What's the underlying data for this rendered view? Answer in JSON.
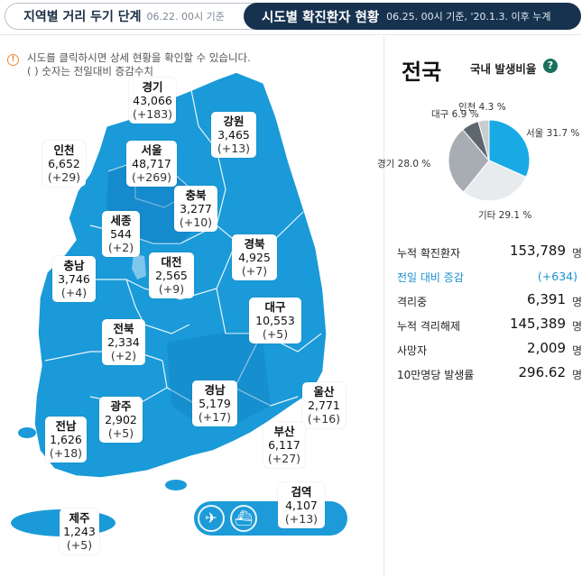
{
  "tabs": [
    {
      "title": "지역별 거리 두기 단계",
      "sub": "06.22. 00시 기준"
    },
    {
      "title": "시도별 확진환자 현황",
      "sub": "06.25. 00시 기준, '20.1.3. 이후 누계"
    }
  ],
  "notice": {
    "line1": "시도를 클릭하시면 상세 현황을 확인할 수 있습니다.",
    "line2": "( ) 숫자는 전일대비 증감수치"
  },
  "regions": {
    "gyeonggi": {
      "name": "경기",
      "value": "43,066",
      "delta": "(+183)"
    },
    "gangwon": {
      "name": "강원",
      "value": "3,465",
      "delta": "(+13)"
    },
    "incheon": {
      "name": "인천",
      "value": "6,652",
      "delta": "(+29)"
    },
    "seoul": {
      "name": "서울",
      "value": "48,717",
      "delta": "(+269)"
    },
    "chungbuk": {
      "name": "충북",
      "value": "3,277",
      "delta": "(+10)"
    },
    "sejong": {
      "name": "세종",
      "value": "544",
      "delta": "(+2)"
    },
    "chungnam": {
      "name": "충남",
      "value": "3,746",
      "delta": "(+4)"
    },
    "daejeon": {
      "name": "대전",
      "value": "2,565",
      "delta": "(+9)"
    },
    "gyeongbuk": {
      "name": "경북",
      "value": "4,925",
      "delta": "(+7)"
    },
    "daegu": {
      "name": "대구",
      "value": "10,553",
      "delta": "(+5)"
    },
    "jeonbuk": {
      "name": "전북",
      "value": "2,334",
      "delta": "(+2)"
    },
    "gwangju": {
      "name": "광주",
      "value": "2,902",
      "delta": "(+5)"
    },
    "gyeongnam": {
      "name": "경남",
      "value": "5,179",
      "delta": "(+17)"
    },
    "ulsan": {
      "name": "울산",
      "value": "2,771",
      "delta": "(+16)"
    },
    "jeonnam": {
      "name": "전남",
      "value": "1,626",
      "delta": "(+18)"
    },
    "busan": {
      "name": "부산",
      "value": "6,117",
      "delta": "(+27)"
    },
    "jeju": {
      "name": "제주",
      "value": "1,243",
      "delta": "(+5)"
    },
    "quarantine": {
      "name": "검역",
      "value": "4,107",
      "delta": "(+13)"
    }
  },
  "transport_icons": [
    "airplane-icon",
    "ship-icon"
  ],
  "national": {
    "title": "전국",
    "ratio_label": "국내 발생비율"
  },
  "chart_data": {
    "type": "pie",
    "slices": [
      {
        "label": "서울 31.7 %",
        "value": 31.7,
        "color": "#19aae6"
      },
      {
        "label": "기타 29.1 %",
        "value": 29.1,
        "color": "#e8ebee"
      },
      {
        "label": "경기 28.0 %",
        "value": 28.0,
        "color": "#a8adb3"
      },
      {
        "label": "대구 6.9 %",
        "value": 6.9,
        "color": "#5e666e"
      },
      {
        "label": "인천 4.3 %",
        "value": 4.3,
        "color": "#c9cdd1"
      }
    ]
  },
  "stats": [
    {
      "label": "누적 확진환자",
      "value": "153,789",
      "unit": "명"
    },
    {
      "label": "전일 대비 증감",
      "value": "(+634)",
      "unit": ""
    },
    {
      "label": "격리중",
      "value": "6,391",
      "unit": "명"
    },
    {
      "label": "누적 격리해제",
      "value": "145,389",
      "unit": "명"
    },
    {
      "label": "사망자",
      "value": "2,009",
      "unit": "명"
    },
    {
      "label": "10만명당 발생률",
      "value": "296.62",
      "unit": "명"
    }
  ]
}
